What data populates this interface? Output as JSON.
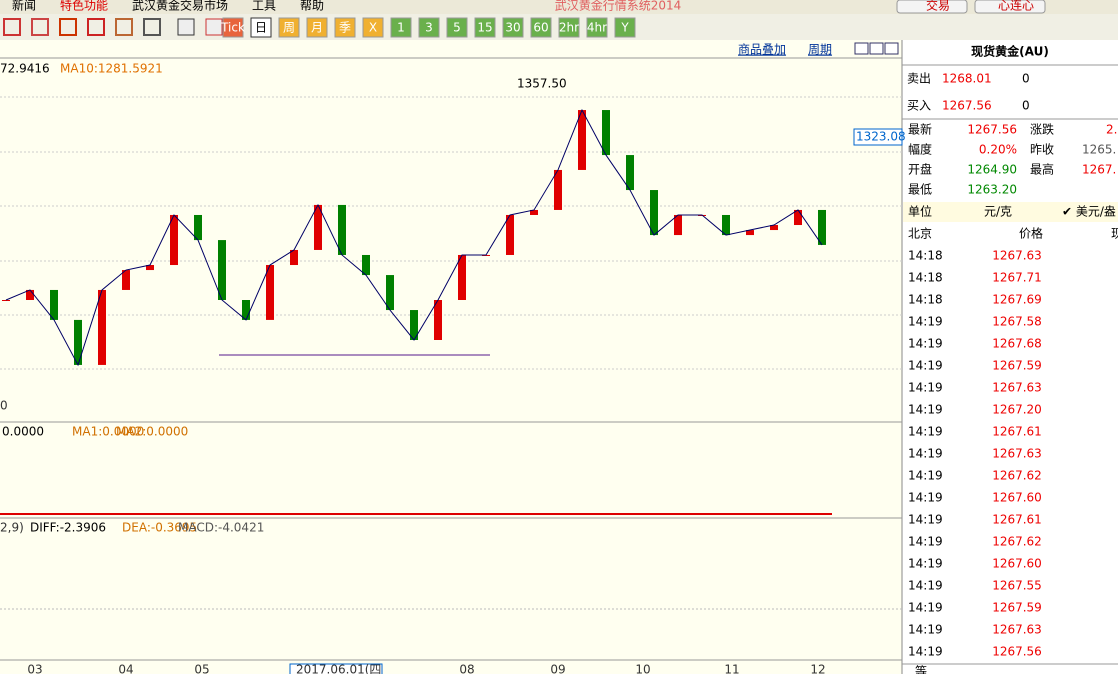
{
  "menu": [
    "新闻",
    "特色功能",
    "武汉黄金交易市场",
    "工具",
    "帮助"
  ],
  "app_title": "武汉黄金行情系统2014",
  "top_buttons": [
    "交易",
    "心连心"
  ],
  "toolbar": [
    "Tick",
    "日",
    "周",
    "月",
    "季",
    "X",
    "1",
    "3",
    "5",
    "15",
    "30",
    "60",
    "2hr",
    "4hr",
    "Y"
  ],
  "chart_links": [
    "商品叠加",
    "周期"
  ],
  "price_chart": {
    "legend": [
      "72.9416",
      "MA10:1281.5921"
    ],
    "high_label": "1357.50",
    "price_tag": "1323.08",
    "axis_zero": "0",
    "closes": [
      1219.2,
      1225.6,
      1206.5,
      1177.8,
      1225.6,
      1238.3,
      1241.5,
      1273.4,
      1257.4,
      1219.2,
      1206.5,
      1241.5,
      1251.1,
      1279.8,
      1247.9,
      1235.1,
      1212.8,
      1193.7,
      1219.2,
      1247.9,
      1247.9,
      1273.4,
      1276.6,
      1302.1,
      1340.3,
      1311.6,
      1289.3,
      1260.6,
      1273.4,
      1273.4,
      1260.6,
      1263.8,
      1267.0,
      1276.6,
      1254.3
    ],
    "ylim": [
      1142.7,
      1372.2
    ]
  },
  "volume_legend": [
    "0.0000",
    "MA1:0.0000",
    "MA2:0.0000"
  ],
  "macd_legend": [
    "2,9)",
    "DIFF:-2.3906",
    "DEA:-0.3695",
    "MACD:-4.0421"
  ],
  "x_labels": [
    "03",
    "04",
    "05",
    "2017.06.01(四",
    "08",
    "09",
    "10",
    "11",
    "12"
  ],
  "quote": {
    "name": "现货黄金(AU)",
    "sell": {
      "label": "卖出",
      "price": "1268.01",
      "qty": "0"
    },
    "buy": {
      "label": "买入",
      "price": "1267.56",
      "qty": "0"
    },
    "stats": [
      [
        "最新",
        "1267.56",
        "涨跌",
        "2."
      ],
      [
        "幅度",
        "0.20%",
        "昨收",
        "1265."
      ],
      [
        "开盘",
        "1264.90",
        "最高",
        "1267."
      ],
      [
        "最低",
        "1263.20"
      ]
    ],
    "unit": [
      "单位",
      "元/克",
      "✔ 美元/盎"
    ],
    "ticks_header": [
      "北京",
      "价格",
      "现"
    ],
    "ticks": [
      [
        "14:18",
        "1267.63"
      ],
      [
        "14:18",
        "1267.71"
      ],
      [
        "14:18",
        "1267.69"
      ],
      [
        "14:19",
        "1267.58"
      ],
      [
        "14:19",
        "1267.68"
      ],
      [
        "14:19",
        "1267.59"
      ],
      [
        "14:19",
        "1267.63"
      ],
      [
        "14:19",
        "1267.20"
      ],
      [
        "14:19",
        "1267.61"
      ],
      [
        "14:19",
        "1267.63"
      ],
      [
        "14:19",
        "1267.62"
      ],
      [
        "14:19",
        "1267.60"
      ],
      [
        "14:19",
        "1267.61"
      ],
      [
        "14:19",
        "1267.62"
      ],
      [
        "14:19",
        "1267.60"
      ],
      [
        "14:19",
        "1267.55"
      ],
      [
        "14:19",
        "1267.59"
      ],
      [
        "14:19",
        "1267.63"
      ],
      [
        "14:19",
        "1267.56"
      ]
    ],
    "footer": "等"
  }
}
